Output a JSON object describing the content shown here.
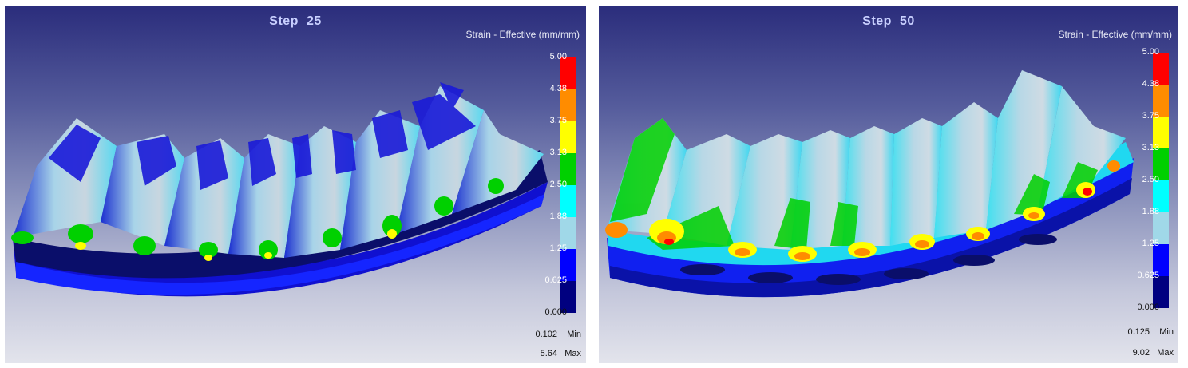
{
  "panels": [
    {
      "step_label": "Step",
      "step_number": "25",
      "legend_title": "Strain - Effective (mm/mm)",
      "scale_ticks": [
        "5.00",
        "4.38",
        "3.75",
        "3.13",
        "2.50",
        "1.88",
        "1.25",
        "0.625",
        "0.000"
      ],
      "min_value": "0.102",
      "min_label": "Min",
      "max_value": "5.64",
      "max_label": "Max"
    },
    {
      "step_label": "Step",
      "step_number": "50",
      "legend_title": "Strain - Effective (mm/mm)",
      "scale_ticks": [
        "5.00",
        "4.38",
        "3.75",
        "3.13",
        "2.50",
        "1.88",
        "1.25",
        "0.625",
        "0.000"
      ],
      "min_value": "0.125",
      "min_label": "Min",
      "max_value": "9.02",
      "max_label": "Max"
    }
  ],
  "colors": {
    "scale_bands": [
      "#ff0000",
      "#ff8c00",
      "#ffff00",
      "#00d000",
      "#00ffff",
      "#a0d8e8",
      "#0000ff",
      "#000080"
    ]
  }
}
